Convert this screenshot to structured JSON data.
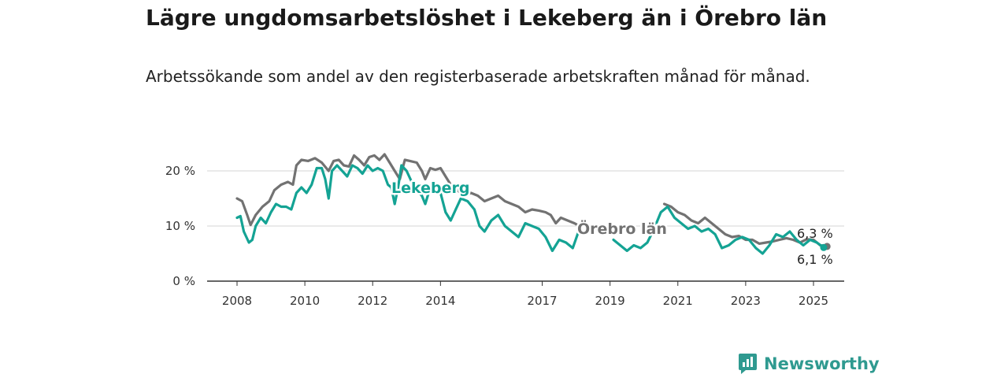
{
  "header": {
    "title": "Lägre ungdomsarbetslöshet i Lekeberg än i Örebro län",
    "subtitle": "Arbetssökande som andel av den registerbaserade arbetskraften månad för månad."
  },
  "brand": {
    "name": "Newsworthy",
    "icon": "newsworthy-logo-icon",
    "color": "#2f9a90"
  },
  "chart_data": {
    "type": "line",
    "title": "Lägre ungdomsarbetslöshet i Lekeberg än i Örebro län",
    "subtitle": "Arbetssökande som andel av den registerbaserade arbetskraften månad för månad.",
    "xlabel": "",
    "ylabel": "",
    "xlim": [
      2007.6,
      2026.0
    ],
    "ylim": [
      0,
      22
    ],
    "x_ticks": [
      2008,
      2010,
      2012,
      2014,
      2017,
      2019,
      2021,
      2023,
      2025
    ],
    "x_tick_labels": [
      "2008",
      "2010",
      "2012",
      "2014",
      "2017",
      "2019",
      "2021",
      "2023",
      "2025"
    ],
    "y_ticks": [
      0,
      10,
      20
    ],
    "y_tick_labels": [
      "0 %",
      "10 %",
      "20 %"
    ],
    "grid": "horizontal",
    "legend": "direct-labels",
    "series": [
      {
        "name": "Örebro län",
        "color": "#727272",
        "end_label": "6,3 %",
        "points": [
          [
            2008.0,
            15.0
          ],
          [
            2008.15,
            14.5
          ],
          [
            2008.3,
            12.0
          ],
          [
            2008.4,
            10.2
          ],
          [
            2008.55,
            12.0
          ],
          [
            2008.75,
            13.5
          ],
          [
            2008.95,
            14.5
          ],
          [
            2009.1,
            16.5
          ],
          [
            2009.3,
            17.5
          ],
          [
            2009.5,
            18.0
          ],
          [
            2009.65,
            17.5
          ],
          [
            2009.75,
            21.0
          ],
          [
            2009.9,
            22.0
          ],
          [
            2010.1,
            21.8
          ],
          [
            2010.3,
            22.3
          ],
          [
            2010.5,
            21.5
          ],
          [
            2010.7,
            20.0
          ],
          [
            2010.85,
            21.8
          ],
          [
            2011.0,
            22.0
          ],
          [
            2011.15,
            21.0
          ],
          [
            2011.3,
            20.8
          ],
          [
            2011.45,
            22.8
          ],
          [
            2011.6,
            22.0
          ],
          [
            2011.75,
            21.0
          ],
          [
            2011.9,
            22.5
          ],
          [
            2012.05,
            22.8
          ],
          [
            2012.2,
            22.0
          ],
          [
            2012.35,
            23.0
          ],
          [
            2012.5,
            21.5
          ],
          [
            2012.65,
            20.0
          ],
          [
            2012.8,
            18.5
          ],
          [
            2012.95,
            22.0
          ],
          [
            2013.1,
            21.8
          ],
          [
            2013.3,
            21.5
          ],
          [
            2013.45,
            20.0
          ],
          [
            2013.55,
            18.5
          ],
          [
            2013.7,
            20.5
          ],
          [
            2013.85,
            20.2
          ],
          [
            2014.0,
            20.5
          ],
          [
            2014.15,
            19.0
          ],
          [
            2014.3,
            17.5
          ],
          [
            2014.5,
            16.5
          ],
          [
            2014.7,
            15.5
          ],
          [
            2014.9,
            16.0
          ],
          [
            2015.1,
            15.5
          ],
          [
            2015.3,
            14.5
          ],
          [
            2015.5,
            15.0
          ],
          [
            2015.7,
            15.5
          ],
          [
            2015.9,
            14.5
          ],
          [
            2016.1,
            14.0
          ],
          [
            2016.3,
            13.5
          ],
          [
            2016.5,
            12.5
          ],
          [
            2016.7,
            13.0
          ],
          [
            2016.9,
            12.8
          ],
          [
            2017.1,
            12.5
          ],
          [
            2017.25,
            12.0
          ],
          [
            2017.4,
            10.5
          ],
          [
            2017.55,
            11.5
          ],
          [
            2017.75,
            11.0
          ],
          [
            2017.95,
            10.5
          ],
          [
            2018.1,
            10.0
          ]
        ],
        "points_2": [
          [
            2020.6,
            14.0
          ],
          [
            2020.8,
            13.5
          ],
          [
            2021.0,
            12.5
          ],
          [
            2021.2,
            12.0
          ],
          [
            2021.4,
            11.0
          ],
          [
            2021.6,
            10.5
          ],
          [
            2021.8,
            11.5
          ],
          [
            2022.0,
            10.5
          ],
          [
            2022.2,
            9.5
          ],
          [
            2022.4,
            8.5
          ],
          [
            2022.6,
            8.0
          ],
          [
            2022.8,
            8.2
          ],
          [
            2023.0,
            7.5
          ],
          [
            2023.2,
            7.5
          ],
          [
            2023.4,
            6.8
          ],
          [
            2023.6,
            7.0
          ],
          [
            2023.8,
            7.2
          ],
          [
            2024.0,
            7.5
          ],
          [
            2024.2,
            7.8
          ],
          [
            2024.4,
            7.5
          ],
          [
            2024.6,
            7.0
          ],
          [
            2024.8,
            7.6
          ],
          [
            2025.0,
            7.5
          ],
          [
            2025.2,
            6.5
          ],
          [
            2025.4,
            6.3
          ]
        ]
      },
      {
        "name": "Lekeberg",
        "color": "#14a394",
        "end_label": "6,1 %",
        "points": [
          [
            2008.0,
            11.5
          ],
          [
            2008.1,
            11.8
          ],
          [
            2008.2,
            9.0
          ],
          [
            2008.35,
            7.0
          ],
          [
            2008.45,
            7.5
          ],
          [
            2008.55,
            10.0
          ],
          [
            2008.7,
            11.5
          ],
          [
            2008.85,
            10.5
          ],
          [
            2009.0,
            12.5
          ],
          [
            2009.15,
            14.0
          ],
          [
            2009.3,
            13.5
          ],
          [
            2009.45,
            13.5
          ],
          [
            2009.6,
            13.0
          ],
          [
            2009.75,
            16.0
          ],
          [
            2009.9,
            17.0
          ],
          [
            2010.05,
            16.0
          ],
          [
            2010.2,
            17.5
          ],
          [
            2010.35,
            20.5
          ],
          [
            2010.5,
            20.5
          ],
          [
            2010.6,
            18.5
          ],
          [
            2010.7,
            15.0
          ],
          [
            2010.8,
            20.0
          ],
          [
            2010.95,
            21.0
          ],
          [
            2011.1,
            20.0
          ],
          [
            2011.25,
            19.0
          ],
          [
            2011.4,
            21.0
          ],
          [
            2011.55,
            20.5
          ],
          [
            2011.7,
            19.5
          ],
          [
            2011.85,
            21.0
          ],
          [
            2012.0,
            20.0
          ],
          [
            2012.15,
            20.5
          ],
          [
            2012.3,
            20.0
          ],
          [
            2012.45,
            17.5
          ],
          [
            2012.55,
            17.0
          ],
          [
            2012.65,
            14.0
          ],
          [
            2012.75,
            17.0
          ],
          [
            2012.85,
            21.0
          ],
          [
            2013.0,
            20.0
          ],
          [
            2013.15,
            18.0
          ],
          [
            2013.3,
            16.5
          ],
          [
            2013.45,
            15.5
          ],
          [
            2013.55,
            14.0
          ],
          [
            2013.7,
            17.0
          ],
          [
            2013.85,
            16.5
          ],
          [
            2014.0,
            16.0
          ],
          [
            2014.15,
            12.5
          ],
          [
            2014.3,
            11.0
          ],
          [
            2014.45,
            13.0
          ],
          [
            2014.6,
            15.0
          ],
          [
            2014.8,
            14.5
          ],
          [
            2015.0,
            13.0
          ],
          [
            2015.15,
            10.0
          ],
          [
            2015.3,
            9.0
          ],
          [
            2015.5,
            11.0
          ],
          [
            2015.7,
            12.0
          ],
          [
            2015.9,
            10.0
          ],
          [
            2016.1,
            9.0
          ],
          [
            2016.3,
            8.0
          ],
          [
            2016.5,
            10.5
          ],
          [
            2016.7,
            10.0
          ],
          [
            2016.9,
            9.5
          ],
          [
            2017.1,
            8.0
          ],
          [
            2017.3,
            5.5
          ],
          [
            2017.5,
            7.5
          ],
          [
            2017.7,
            7.0
          ],
          [
            2017.9,
            6.0
          ],
          [
            2018.1,
            9.5
          ]
        ],
        "points_2": [
          [
            2019.1,
            7.5
          ],
          [
            2019.3,
            6.5
          ],
          [
            2019.5,
            5.5
          ],
          [
            2019.7,
            6.5
          ],
          [
            2019.9,
            6.0
          ],
          [
            2020.1,
            7.0
          ],
          [
            2020.3,
            9.5
          ],
          [
            2020.5,
            12.5
          ],
          [
            2020.7,
            13.5
          ],
          [
            2020.9,
            11.5
          ],
          [
            2021.1,
            10.5
          ],
          [
            2021.3,
            9.5
          ],
          [
            2021.5,
            10.0
          ],
          [
            2021.7,
            9.0
          ],
          [
            2021.9,
            9.5
          ],
          [
            2022.1,
            8.5
          ],
          [
            2022.3,
            6.0
          ],
          [
            2022.5,
            6.5
          ],
          [
            2022.7,
            7.5
          ],
          [
            2022.9,
            8.0
          ],
          [
            2023.1,
            7.5
          ],
          [
            2023.3,
            6.0
          ],
          [
            2023.5,
            5.0
          ],
          [
            2023.7,
            6.5
          ],
          [
            2023.9,
            8.5
          ],
          [
            2024.1,
            8.0
          ],
          [
            2024.3,
            9.0
          ],
          [
            2024.5,
            7.5
          ],
          [
            2024.7,
            6.5
          ],
          [
            2024.9,
            7.5
          ],
          [
            2025.1,
            7.0
          ],
          [
            2025.3,
            6.1
          ]
        ]
      }
    ]
  }
}
